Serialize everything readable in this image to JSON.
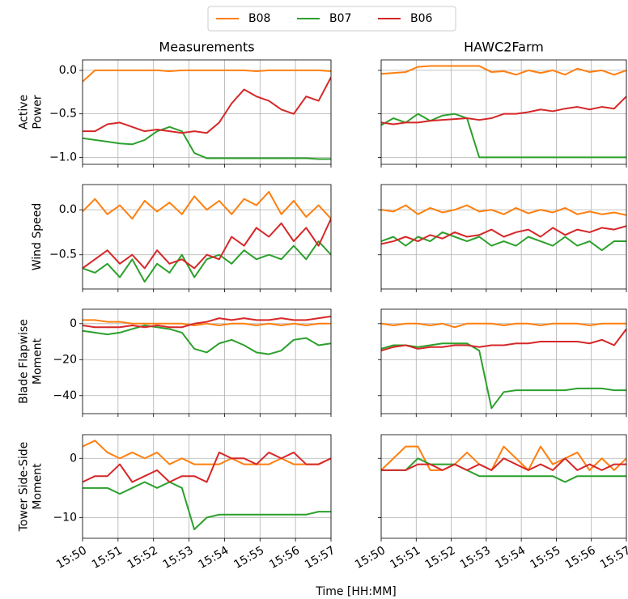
{
  "xlabel": "Time [HH:MM]",
  "legend_loc": "upper center",
  "chart_data": [
    {
      "type": "line",
      "title": "Measurements",
      "ylabel": [
        "Active",
        "Power"
      ],
      "x": [
        0,
        0.35,
        0.7,
        1.05,
        1.4,
        1.75,
        2.1,
        2.45,
        2.8,
        3.15,
        3.5,
        3.85,
        4.2,
        4.55,
        4.9,
        5.25,
        5.6,
        5.95,
        6.3,
        6.65,
        7
      ],
      "xlim": [
        0,
        7
      ],
      "xticks": [
        0,
        1,
        2,
        3,
        4,
        5,
        6,
        7
      ],
      "ylim": [
        -1.08,
        0.12
      ],
      "yticks": [
        {
          "value": -1,
          "label": "−1.0"
        },
        {
          "value": -0.5,
          "label": "−0.5"
        },
        {
          "value": 0,
          "label": "0.0"
        }
      ],
      "grid": true,
      "series": [
        {
          "name": "B08",
          "color": "#ff7f0e",
          "values": [
            -0.13,
            0.0,
            0.0,
            0.0,
            0.0,
            0.0,
            0.0,
            -0.01,
            0.0,
            0.0,
            0.0,
            0.0,
            0.0,
            0.0,
            -0.01,
            0.0,
            0.0,
            0.0,
            0.0,
            0.0,
            -0.01
          ]
        },
        {
          "name": "B07",
          "color": "#2ca02c",
          "values": [
            -0.78,
            -0.8,
            -0.82,
            -0.84,
            -0.85,
            -0.8,
            -0.7,
            -0.65,
            -0.7,
            -0.95,
            -1.01,
            -1.01,
            -1.01,
            -1.01,
            -1.01,
            -1.01,
            -1.01,
            -1.01,
            -1.01,
            -1.02,
            -1.02
          ]
        },
        {
          "name": "B06",
          "color": "#d62728",
          "values": [
            -0.7,
            -0.7,
            -0.62,
            -0.6,
            -0.65,
            -0.7,
            -0.68,
            -0.7,
            -0.72,
            -0.7,
            -0.72,
            -0.6,
            -0.38,
            -0.22,
            -0.3,
            -0.35,
            -0.45,
            -0.5,
            -0.3,
            -0.35,
            -0.08
          ]
        }
      ]
    },
    {
      "type": "line",
      "title": "HAWC2Farm",
      "x": [
        0,
        0.35,
        0.7,
        1.05,
        1.4,
        1.75,
        2.1,
        2.45,
        2.8,
        3.15,
        3.5,
        3.85,
        4.2,
        4.55,
        4.9,
        5.25,
        5.6,
        5.95,
        6.3,
        6.65,
        7
      ],
      "xlim": [
        0,
        7
      ],
      "xticks": [
        0,
        1,
        2,
        3,
        4,
        5,
        6,
        7
      ],
      "ylim": [
        -1.08,
        0.12
      ],
      "yticks": [
        -1,
        -0.5,
        0
      ],
      "grid": true,
      "series": [
        {
          "name": "B08",
          "color": "#ff7f0e",
          "values": [
            -0.04,
            -0.03,
            -0.02,
            0.04,
            0.05,
            0.05,
            0.05,
            0.05,
            0.05,
            -0.02,
            -0.01,
            -0.05,
            0.0,
            -0.03,
            0.0,
            -0.05,
            0.02,
            -0.02,
            0.0,
            -0.05,
            0.0
          ]
        },
        {
          "name": "B07",
          "color": "#2ca02c",
          "values": [
            -0.63,
            -0.55,
            -0.6,
            -0.5,
            -0.58,
            -0.52,
            -0.5,
            -0.55,
            -1.0,
            -1.0,
            -1.0,
            -1.0,
            -1.0,
            -1.0,
            -1.0,
            -1.0,
            -1.0,
            -1.0,
            -1.0,
            -1.0,
            -1.0
          ]
        },
        {
          "name": "B06",
          "color": "#d62728",
          "values": [
            -0.6,
            -0.62,
            -0.6,
            -0.6,
            -0.58,
            -0.57,
            -0.56,
            -0.55,
            -0.57,
            -0.55,
            -0.5,
            -0.5,
            -0.48,
            -0.45,
            -0.47,
            -0.44,
            -0.42,
            -0.45,
            -0.42,
            -0.44,
            -0.3
          ]
        }
      ]
    },
    {
      "type": "line",
      "ylabel": [
        "Wind Speed"
      ],
      "x": [
        0,
        0.35,
        0.7,
        1.05,
        1.4,
        1.75,
        2.1,
        2.45,
        2.8,
        3.15,
        3.5,
        3.85,
        4.2,
        4.55,
        4.9,
        5.25,
        5.6,
        5.95,
        6.3,
        6.65,
        7
      ],
      "xlim": [
        0,
        7
      ],
      "xticks": [
        0,
        1,
        2,
        3,
        4,
        5,
        6,
        7
      ],
      "ylim": [
        -0.88,
        0.28
      ],
      "yticks": [
        {
          "value": -0.5,
          "label": "−0.5"
        },
        {
          "value": 0,
          "label": "0.0"
        }
      ],
      "grid": true,
      "series": [
        {
          "name": "B08",
          "color": "#ff7f0e",
          "values": [
            -0.02,
            0.12,
            -0.05,
            0.05,
            -0.1,
            0.1,
            -0.02,
            0.08,
            -0.05,
            0.15,
            0.0,
            0.1,
            -0.05,
            0.12,
            0.05,
            0.2,
            -0.05,
            0.1,
            -0.08,
            0.05,
            -0.1
          ]
        },
        {
          "name": "B07",
          "color": "#2ca02c",
          "values": [
            -0.65,
            -0.7,
            -0.6,
            -0.75,
            -0.55,
            -0.8,
            -0.6,
            -0.7,
            -0.5,
            -0.75,
            -0.55,
            -0.5,
            -0.6,
            -0.45,
            -0.55,
            -0.5,
            -0.55,
            -0.4,
            -0.55,
            -0.35,
            -0.5
          ]
        },
        {
          "name": "B06",
          "color": "#d62728",
          "values": [
            -0.65,
            -0.55,
            -0.45,
            -0.6,
            -0.5,
            -0.65,
            -0.45,
            -0.6,
            -0.55,
            -0.65,
            -0.5,
            -0.55,
            -0.3,
            -0.4,
            -0.2,
            -0.3,
            -0.15,
            -0.35,
            -0.2,
            -0.4,
            -0.1
          ]
        }
      ]
    },
    {
      "type": "line",
      "x": [
        0,
        0.35,
        0.7,
        1.05,
        1.4,
        1.75,
        2.1,
        2.45,
        2.8,
        3.15,
        3.5,
        3.85,
        4.2,
        4.55,
        4.9,
        5.25,
        5.6,
        5.95,
        6.3,
        6.65,
        7
      ],
      "xlim": [
        0,
        7
      ],
      "xticks": [
        0,
        1,
        2,
        3,
        4,
        5,
        6,
        7
      ],
      "ylim": [
        -0.88,
        0.28
      ],
      "yticks": [
        -0.5,
        0
      ],
      "grid": true,
      "series": [
        {
          "name": "B08",
          "color": "#ff7f0e",
          "values": [
            0.0,
            -0.02,
            0.05,
            -0.05,
            0.02,
            -0.03,
            0.0,
            0.05,
            -0.02,
            0.0,
            -0.05,
            0.02,
            -0.04,
            0.0,
            -0.03,
            0.02,
            -0.05,
            -0.02,
            -0.05,
            -0.03,
            -0.06
          ]
        },
        {
          "name": "B07",
          "color": "#2ca02c",
          "values": [
            -0.35,
            -0.3,
            -0.4,
            -0.3,
            -0.35,
            -0.25,
            -0.3,
            -0.35,
            -0.3,
            -0.4,
            -0.35,
            -0.4,
            -0.3,
            -0.35,
            -0.4,
            -0.3,
            -0.4,
            -0.35,
            -0.45,
            -0.35,
            -0.35
          ]
        },
        {
          "name": "B06",
          "color": "#d62728",
          "values": [
            -0.38,
            -0.35,
            -0.3,
            -0.35,
            -0.28,
            -0.32,
            -0.25,
            -0.3,
            -0.28,
            -0.22,
            -0.3,
            -0.25,
            -0.22,
            -0.3,
            -0.2,
            -0.28,
            -0.22,
            -0.25,
            -0.2,
            -0.22,
            -0.18
          ]
        }
      ]
    },
    {
      "type": "line",
      "ylabel": [
        "Blade Flapwise",
        "Moment"
      ],
      "x": [
        0,
        0.35,
        0.7,
        1.05,
        1.4,
        1.75,
        2.1,
        2.45,
        2.8,
        3.15,
        3.5,
        3.85,
        4.2,
        4.55,
        4.9,
        5.25,
        5.6,
        5.95,
        6.3,
        6.65,
        7
      ],
      "xlim": [
        0,
        7
      ],
      "xticks": [
        0,
        1,
        2,
        3,
        4,
        5,
        6,
        7
      ],
      "ylim": [
        -50,
        8
      ],
      "yticks": [
        {
          "value": -40,
          "label": "−40"
        },
        {
          "value": -20,
          "label": "−20"
        },
        0
      ],
      "grid": true,
      "series": [
        {
          "name": "B08",
          "color": "#ff7f0e",
          "values": [
            2,
            2,
            1,
            1,
            0,
            0,
            0,
            0,
            0,
            -1,
            0,
            -1,
            0,
            0,
            -1,
            0,
            -1,
            0,
            -1,
            0,
            0
          ]
        },
        {
          "name": "B07",
          "color": "#2ca02c",
          "values": [
            -4,
            -5,
            -6,
            -5,
            -3,
            -1,
            -2,
            -3,
            -5,
            -14,
            -16,
            -11,
            -9,
            -12,
            -16,
            -17,
            -15,
            -9,
            -8,
            -12,
            -11
          ]
        },
        {
          "name": "B06",
          "color": "#d62728",
          "values": [
            -1,
            -2,
            -2,
            -2,
            -1,
            -2,
            -1,
            -2,
            -2,
            0,
            1,
            3,
            2,
            3,
            2,
            2,
            3,
            2,
            2,
            3,
            4
          ]
        }
      ]
    },
    {
      "type": "line",
      "x": [
        0,
        0.35,
        0.7,
        1.05,
        1.4,
        1.75,
        2.1,
        2.45,
        2.8,
        3.15,
        3.5,
        3.85,
        4.2,
        4.55,
        4.9,
        5.25,
        5.6,
        5.95,
        6.3,
        6.65,
        7
      ],
      "xlim": [
        0,
        7
      ],
      "xticks": [
        0,
        1,
        2,
        3,
        4,
        5,
        6,
        7
      ],
      "ylim": [
        -50,
        8
      ],
      "yticks": [
        -40,
        -20,
        0
      ],
      "grid": true,
      "series": [
        {
          "name": "B08",
          "color": "#ff7f0e",
          "values": [
            0,
            -1,
            0,
            0,
            -1,
            0,
            -2,
            0,
            0,
            0,
            -1,
            0,
            0,
            -1,
            0,
            0,
            0,
            -1,
            0,
            0,
            0
          ]
        },
        {
          "name": "B07",
          "color": "#2ca02c",
          "values": [
            -14,
            -12,
            -12,
            -13,
            -12,
            -11,
            -11,
            -11,
            -15,
            -47,
            -38,
            -37,
            -37,
            -37,
            -37,
            -37,
            -36,
            -36,
            -36,
            -37,
            -37
          ]
        },
        {
          "name": "B06",
          "color": "#d62728",
          "values": [
            -15,
            -13,
            -12,
            -14,
            -13,
            -13,
            -12,
            -12,
            -13,
            -12,
            -12,
            -11,
            -11,
            -10,
            -10,
            -10,
            -10,
            -11,
            -9,
            -12,
            -3
          ]
        }
      ]
    },
    {
      "type": "line",
      "ylabel": [
        "Tower Side-Side",
        "Moment"
      ],
      "x": [
        0,
        0.35,
        0.7,
        1.05,
        1.4,
        1.75,
        2.1,
        2.45,
        2.8,
        3.15,
        3.5,
        3.85,
        4.2,
        4.55,
        4.9,
        5.25,
        5.6,
        5.95,
        6.3,
        6.65,
        7
      ],
      "xlim": [
        0,
        7
      ],
      "xticks": [
        {
          "value": 0,
          "label": "15:50"
        },
        {
          "value": 1,
          "label": "15:51"
        },
        {
          "value": 2,
          "label": "15:52"
        },
        {
          "value": 3,
          "label": "15:53"
        },
        {
          "value": 4,
          "label": "15:54"
        },
        {
          "value": 5,
          "label": "15:55"
        },
        {
          "value": 6,
          "label": "15:56"
        },
        {
          "value": 7,
          "label": "15:57"
        }
      ],
      "ylim": [
        -13.5,
        4
      ],
      "yticks": [
        {
          "value": -10,
          "label": "−10"
        },
        0
      ],
      "grid": true,
      "series": [
        {
          "name": "B08",
          "color": "#ff7f0e",
          "values": [
            2,
            3,
            1,
            0,
            1,
            0,
            1,
            -1,
            0,
            -1,
            -1,
            -1,
            0,
            -1,
            -1,
            -1,
            0,
            -1,
            -1,
            -1,
            0
          ]
        },
        {
          "name": "B07",
          "color": "#2ca02c",
          "values": [
            -5,
            -5,
            -5,
            -6,
            -5,
            -4,
            -5,
            -4,
            -5,
            -12,
            -10,
            -9.5,
            -9.5,
            -9.5,
            -9.5,
            -9.5,
            -9.5,
            -9.5,
            -9.5,
            -9,
            -9
          ]
        },
        {
          "name": "B06",
          "color": "#d62728",
          "values": [
            -4,
            -3,
            -3,
            -1,
            -4,
            -3,
            -2,
            -4,
            -3,
            -3,
            -4,
            1,
            0,
            0,
            -1,
            1,
            0,
            1,
            -1,
            -1,
            0
          ]
        }
      ]
    },
    {
      "type": "line",
      "x": [
        0,
        0.35,
        0.7,
        1.05,
        1.4,
        1.75,
        2.1,
        2.45,
        2.8,
        3.15,
        3.5,
        3.85,
        4.2,
        4.55,
        4.9,
        5.25,
        5.6,
        5.95,
        6.3,
        6.65,
        7
      ],
      "xlim": [
        0,
        7
      ],
      "xticks": [
        {
          "value": 0,
          "label": "15:50"
        },
        {
          "value": 1,
          "label": "15:51"
        },
        {
          "value": 2,
          "label": "15:52"
        },
        {
          "value": 3,
          "label": "15:53"
        },
        {
          "value": 4,
          "label": "15:54"
        },
        {
          "value": 5,
          "label": "15:55"
        },
        {
          "value": 6,
          "label": "15:56"
        },
        {
          "value": 7,
          "label": "15:57"
        }
      ],
      "ylim": [
        -13.5,
        4
      ],
      "yticks": [
        -10,
        0
      ],
      "grid": true,
      "series": [
        {
          "name": "B08",
          "color": "#ff7f0e",
          "values": [
            -2,
            0,
            2,
            2,
            -2,
            -2,
            -1,
            1,
            -1,
            -2,
            2,
            0,
            -2,
            2,
            -1,
            0,
            1,
            -2,
            0,
            -2,
            0
          ]
        },
        {
          "name": "B07",
          "color": "#2ca02c",
          "values": [
            -2,
            -2,
            -2,
            0,
            -1,
            -1,
            -1,
            -2,
            -3,
            -3,
            -3,
            -3,
            -3,
            -3,
            -3,
            -4,
            -3,
            -3,
            -3,
            -3,
            -3
          ]
        },
        {
          "name": "B06",
          "color": "#d62728",
          "values": [
            -2,
            -2,
            -2,
            -1,
            -1,
            -2,
            -1,
            -2,
            -1,
            -2,
            0,
            -1,
            -2,
            -1,
            -2,
            0,
            -2,
            -1,
            -2,
            -1,
            -1
          ]
        }
      ]
    }
  ]
}
